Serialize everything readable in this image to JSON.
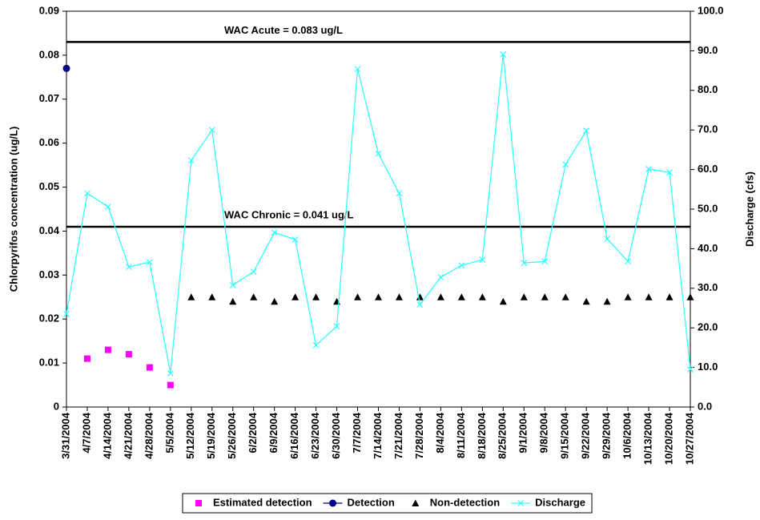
{
  "chart_data": {
    "type": "line",
    "y_label": "Chlorpyrifos concentration (ug/L)",
    "y2_label": "Discharge (cfs)",
    "categories": [
      "3/31/2004",
      "4/7/2004",
      "4/14/2004",
      "4/21/2004",
      "4/28/2004",
      "5/5/2004",
      "5/12/2004",
      "5/19/2004",
      "5/26/2004",
      "6/2/2004",
      "6/9/2004",
      "6/16/2004",
      "6/23/2004",
      "6/30/2004",
      "7/7/2004",
      "7/14/2004",
      "7/21/2004",
      "7/28/2004",
      "8/4/2004",
      "8/11/2004",
      "8/18/2004",
      "8/25/2004",
      "9/1/2004",
      "9/8/2004",
      "9/15/2004",
      "9/22/2004",
      "9/29/2004",
      "10/6/2004",
      "10/13/2004",
      "10/20/2004",
      "10/27/2004"
    ],
    "series": [
      {
        "name": "Estimated detection",
        "color": "#ff00ff",
        "marker": "square",
        "line": false,
        "axis": "y",
        "values": [
          null,
          0.011,
          0.013,
          0.012,
          0.009,
          0.005,
          null,
          null,
          null,
          null,
          null,
          null,
          null,
          null,
          null,
          null,
          null,
          null,
          null,
          null,
          null,
          null,
          null,
          null,
          null,
          null,
          null,
          null,
          null,
          null,
          null
        ]
      },
      {
        "name": "Detection",
        "color": "#000080",
        "marker": "circle",
        "line": false,
        "legend_line": true,
        "axis": "y",
        "values": [
          0.077,
          null,
          null,
          null,
          null,
          null,
          null,
          null,
          null,
          null,
          null,
          null,
          null,
          null,
          null,
          null,
          null,
          null,
          null,
          null,
          null,
          null,
          null,
          null,
          null,
          null,
          null,
          null,
          null,
          null,
          null
        ]
      },
      {
        "name": "Non-detection",
        "color": "#000000",
        "marker": "triangle",
        "line": false,
        "axis": "y",
        "values": [
          null,
          null,
          null,
          null,
          null,
          null,
          0.025,
          0.025,
          0.024,
          0.025,
          0.024,
          0.025,
          0.025,
          0.024,
          0.025,
          0.025,
          0.025,
          0.025,
          0.025,
          0.025,
          0.025,
          0.024,
          0.025,
          0.025,
          0.025,
          0.024,
          0.024,
          0.025,
          0.025,
          0.025,
          0.025
        ]
      },
      {
        "name": "Discharge",
        "color": "#33ffff",
        "marker": "x",
        "line": true,
        "axis": "y2",
        "values": [
          23.5,
          54.0,
          50.6,
          35.4,
          36.6,
          8.5,
          62.3,
          70.0,
          30.8,
          34.2,
          44.1,
          42.3,
          15.6,
          20.4,
          85.4,
          64.0,
          54.0,
          25.9,
          32.8,
          35.8,
          37.2,
          89.1,
          36.4,
          36.8,
          61.3,
          69.8,
          42.5,
          36.8,
          60.1,
          59.3,
          9.5
        ]
      }
    ],
    "reference_lines": [
      {
        "value": 0.083,
        "label": "WAC Acute = 0.083 ug/L",
        "color": "#000000"
      },
      {
        "value": 0.041,
        "label": "WAC Chronic = 0.041 ug/L",
        "color": "#000000"
      }
    ],
    "ylim": [
      0,
      0.09
    ],
    "yticks": [
      0,
      0.01,
      0.02,
      0.03,
      0.04,
      0.05,
      0.06,
      0.07,
      0.08,
      0.09
    ],
    "y2lim": [
      0,
      100
    ],
    "y2ticks": [
      {
        "value": 0,
        "label": "0.0"
      },
      {
        "value": 10,
        "label": "10.0"
      },
      {
        "value": 20,
        "label": "20.0"
      },
      {
        "value": 30,
        "label": "30.0"
      },
      {
        "value": 40,
        "label": "40.0"
      },
      {
        "value": 50,
        "label": "50.0"
      },
      {
        "value": 60,
        "label": "60.0"
      },
      {
        "value": 70,
        "label": "70.0"
      },
      {
        "value": 80,
        "label": "80.0"
      },
      {
        "value": 90,
        "label": "90.0"
      },
      {
        "value": 100,
        "label": "100.0"
      }
    ],
    "grid": false,
    "legend": "bottom"
  }
}
